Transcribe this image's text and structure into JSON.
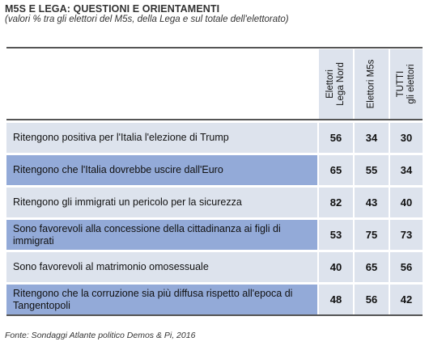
{
  "header": {
    "title": "M5S E LEGA: QUESTIONI E ORIENTAMENTI",
    "subtitle": "(valori % tra gli elettori del M5s, della Lega e sul totale dell'elettorato)"
  },
  "columns": [
    {
      "line1": "Elettori",
      "line2": "Lega Nord"
    },
    {
      "line1": "Elettori M5s",
      "line2": ""
    },
    {
      "line1": "TUTTI",
      "line2": "gli elettori"
    }
  ],
  "rows": [
    {
      "label": "Ritengono positiva per l'Italia l'elezione  di Trump",
      "values": [
        "56",
        "34",
        "30"
      ]
    },
    {
      "label": "Ritengono che l'Italia dovrebbe uscire dall'Euro",
      "values": [
        "65",
        "55",
        "34"
      ]
    },
    {
      "label": "Ritengono gli immigrati un  pericolo per la sicurezza",
      "values": [
        "82",
        "43",
        "40"
      ]
    },
    {
      "label": "Sono favorevoli alla concessione della cittadinanza  ai figli di immigrati",
      "values": [
        "53",
        "75",
        "73"
      ]
    },
    {
      "label": "Sono favorevoli al matrimonio omosessuale",
      "values": [
        "40",
        "65",
        "56"
      ]
    },
    {
      "label": "Ritengono che la corruzione  sia più diffusa rispetto all'epoca di Tangentopoli",
      "values": [
        "48",
        "56",
        "42"
      ]
    }
  ],
  "footer": {
    "source": "Fonte: Sondaggi Atlante politico Demos & Pi, 2016"
  },
  "chart_data": {
    "type": "table",
    "title": "M5S E LEGA: QUESTIONI E ORIENTAMENTI",
    "subtitle": "(valori % tra gli elettori del M5s, della Lega e sul totale dell'elettorato)",
    "columns": [
      "Elettori Lega Nord",
      "Elettori M5s",
      "TUTTI gli elettori"
    ],
    "rows": [
      "Ritengono positiva per l'Italia l'elezione  di Trump",
      "Ritengono che l'Italia dovrebbe uscire dall'Euro",
      "Ritengono gli immigrati un  pericolo per la sicurezza",
      "Sono favorevoli alla concessione della cittadinanza  ai figli di immigrati",
      "Sono favorevoli al matrimonio omosessuale",
      "Ritengono che la corruzione  sia più diffusa rispetto all'epoca di Tangentopoli"
    ],
    "values": [
      [
        56,
        34,
        30
      ],
      [
        65,
        55,
        34
      ],
      [
        82,
        43,
        40
      ],
      [
        53,
        75,
        73
      ],
      [
        40,
        65,
        56
      ],
      [
        48,
        56,
        42
      ]
    ]
  },
  "colors": {
    "light_row": "#dde3ed",
    "dark_row": "#93aad8",
    "rule": "#555555"
  }
}
